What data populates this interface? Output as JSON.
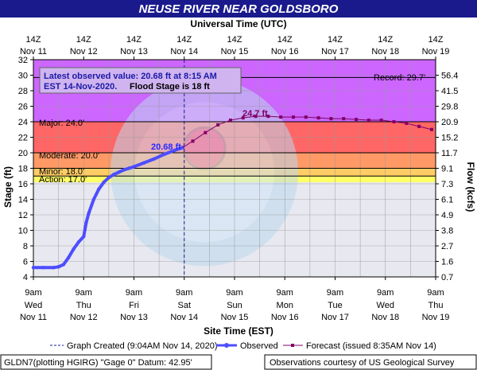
{
  "title": "NEUSE RIVER NEAR GOLDSBORO",
  "top_axis_title": "Universal Time (UTC)",
  "bottom_axis_title": "Site Time (EST)",
  "left_axis_title": "Stage (ft)",
  "right_axis_title": "Flow (kcfs)",
  "top_ticks": [
    {
      "line1": "14Z",
      "line2": "Nov 11"
    },
    {
      "line1": "14Z",
      "line2": "Nov 12"
    },
    {
      "line1": "14Z",
      "line2": "Nov 13"
    },
    {
      "line1": "14Z",
      "line2": "Nov 14"
    },
    {
      "line1": "14Z",
      "line2": "Nov 15"
    },
    {
      "line1": "14Z",
      "line2": "Nov 16"
    },
    {
      "line1": "14Z",
      "line2": "Nov 17"
    },
    {
      "line1": "14Z",
      "line2": "Nov 18"
    },
    {
      "line1": "14Z",
      "line2": "Nov 19"
    }
  ],
  "bottom_ticks": [
    {
      "line1": "9am",
      "line2": "Wed",
      "line3": "Nov 11"
    },
    {
      "line1": "9am",
      "line2": "Thu",
      "line3": "Nov 12"
    },
    {
      "line1": "9am",
      "line2": "Fri",
      "line3": "Nov 13"
    },
    {
      "line1": "9am",
      "line2": "Sat",
      "line3": "Nov 14"
    },
    {
      "line1": "9am",
      "line2": "Sun",
      "line3": "Nov 15"
    },
    {
      "line1": "9am",
      "line2": "Mon",
      "line3": "Nov 16"
    },
    {
      "line1": "9am",
      "line2": "Tue",
      "line3": "Nov 17"
    },
    {
      "line1": "9am",
      "line2": "Wed",
      "line3": "Nov 18"
    },
    {
      "line1": "9am",
      "line2": "Thu",
      "line3": "Nov 19"
    }
  ],
  "left_ticks": [
    "4",
    "6",
    "8",
    "10",
    "12",
    "14",
    "16",
    "18",
    "20",
    "22",
    "24",
    "26",
    "28",
    "30",
    "32"
  ],
  "right_ticks": [
    {
      "stage": 4,
      "label": "0.7"
    },
    {
      "stage": 6,
      "label": "1.6"
    },
    {
      "stage": 8,
      "label": "2.7"
    },
    {
      "stage": 10,
      "label": "3.8"
    },
    {
      "stage": 12,
      "label": "4.9"
    },
    {
      "stage": 14,
      "label": "6.1"
    },
    {
      "stage": 16,
      "label": "7.3"
    },
    {
      "stage": 18,
      "label": "9.1"
    },
    {
      "stage": 20,
      "label": "11.7"
    },
    {
      "stage": 22,
      "label": "15.2"
    },
    {
      "stage": 24,
      "label": "20.9"
    },
    {
      "stage": 26,
      "label": "29.8"
    },
    {
      "stage": 28,
      "label": "41.5"
    },
    {
      "stage": 30,
      "label": "56.4"
    }
  ],
  "info_box": {
    "line1": "Latest observed value: 20.68 ft at 8:15 AM",
    "line2_part1": "EST 14-Nov-2020.",
    "line2_part2": "Flood Stage is 18 ft"
  },
  "labels": {
    "record": "Record: 29.7'",
    "major": "Major: 24.0'",
    "moderate": "Moderate: 20.0'",
    "minor": "Minor: 18.0'",
    "action": "Action: 17.0'",
    "observed_value": "20.68 ft",
    "forecast_peak": "24.7 ft"
  },
  "legend": {
    "graph_created": "Graph Created (9:04AM Nov 14, 2020)",
    "observed": "Observed",
    "forecast": "Forecast (issued 8:35AM Nov 14)"
  },
  "footer": {
    "left": "GLDN7(plotting HGIRG) \"Gage 0\" Datum: 42.95'",
    "right": "Observations courtesy of US Geological Survey"
  },
  "colors": {
    "title_bg": "#1a1a8c",
    "record_band": "#cc66ff",
    "major_band": "#ff6666",
    "moderate_band": "#ff9966",
    "minor_band": "#ffcc66",
    "action_band": "#ffff66",
    "observed": "#4d4dff",
    "forecast": "#800066",
    "info_text": "#1a1aa6",
    "observed_label": "#2a2aff",
    "forecast_label": "#800066"
  },
  "chart_data": {
    "type": "line",
    "title": "NEUSE RIVER NEAR GOLDSBORO",
    "xlabel": "Site Time (EST)",
    "ylabel": "Stage (ft)",
    "y2label": "Flow (kcfs)",
    "x_unit": "days since 9am EST Wed Nov 11 2020",
    "xlim": [
      0,
      8
    ],
    "ylim": [
      4,
      32
    ],
    "grid": true,
    "thresholds": {
      "action": 17.0,
      "minor": 18.0,
      "moderate": 20.0,
      "major": 24.0,
      "record": 29.7
    },
    "graph_created_x": 3.0,
    "series": [
      {
        "name": "Observed",
        "x": [
          0.0,
          0.2,
          0.4,
          0.5,
          0.6,
          0.7,
          0.8,
          0.9,
          1.0,
          1.05,
          1.1,
          1.2,
          1.3,
          1.4,
          1.5,
          1.6,
          1.7,
          1.8,
          1.9,
          2.0,
          2.2,
          2.4,
          2.6,
          2.8,
          2.97
        ],
        "y": [
          5.2,
          5.2,
          5.2,
          5.3,
          5.6,
          6.5,
          7.6,
          8.5,
          9.2,
          11.0,
          12.2,
          14.0,
          15.3,
          16.2,
          16.8,
          17.2,
          17.5,
          17.8,
          18.0,
          18.2,
          18.7,
          19.2,
          19.8,
          20.3,
          20.68
        ]
      },
      {
        "name": "Forecast (issued 8:35AM Nov 14)",
        "x": [
          3.17,
          3.42,
          3.67,
          3.92,
          4.17,
          4.42,
          4.67,
          4.92,
          5.17,
          5.42,
          5.67,
          5.92,
          6.17,
          6.42,
          6.67,
          6.92,
          7.17,
          7.42,
          7.67,
          7.92
        ],
        "y": [
          21.5,
          22.6,
          23.6,
          24.2,
          24.5,
          24.7,
          24.7,
          24.6,
          24.6,
          24.6,
          24.5,
          24.4,
          24.4,
          24.3,
          24.2,
          24.2,
          24.0,
          23.8,
          23.4,
          23.0
        ]
      }
    ]
  }
}
